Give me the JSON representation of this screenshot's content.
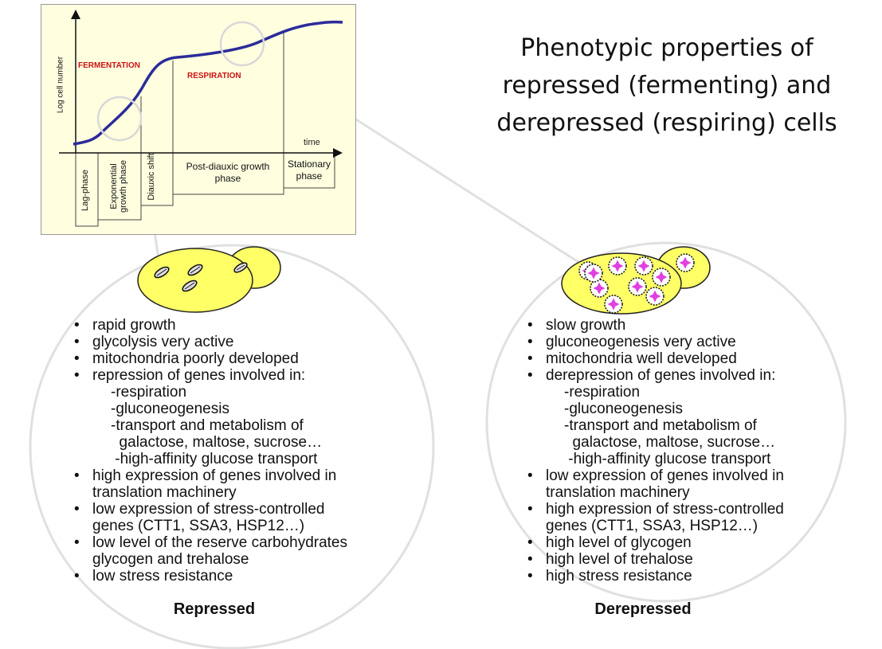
{
  "title": "Phenotypic properties of repressed (fermenting) and derepressed (respiring) cells",
  "growth_chart": {
    "y_axis_label": "Log cell number",
    "x_axis_label": "time",
    "region_fermentation": "FERMENTATION",
    "region_respiration": "RESPIRATION",
    "phases": [
      "Lag-phase",
      "Exponential growth phase",
      "Diauxic shift",
      "Post-diauxic growth phase",
      "Stationary phase"
    ],
    "colors": {
      "curve": "#2b2b9a",
      "region_text": "#cc1111",
      "background": "#ffffe0"
    }
  },
  "repressed": {
    "label": "Repressed",
    "bullets": [
      {
        "text": "rapid growth"
      },
      {
        "text": "glycolysis very active"
      },
      {
        "text": "mitochondria poorly developed"
      },
      {
        "text": "repression of genes involved in:",
        "sub": [
          "-respiration",
          "-gluconeogenesis",
          "-transport and metabolism of",
          "  galactose, maltose, sucrose…",
          " -high-affinity glucose transport"
        ]
      },
      {
        "text": "high expression of genes involved in",
        "cont": "translation machinery"
      },
      {
        "text": "low expression of stress-controlled",
        "cont": "genes (CTT1, SSA3, HSP12…)"
      },
      {
        "text": "low level of the reserve carbohydrates",
        "cont": "glycogen and trehalose"
      },
      {
        "text": "low stress resistance"
      }
    ]
  },
  "derepressed": {
    "label": "Derepressed",
    "bullets": [
      {
        "text": "slow growth"
      },
      {
        "text": "gluconeogenesis very active"
      },
      {
        "text": "mitochondria well developed"
      },
      {
        "text": "derepression of genes involved in:",
        "sub": [
          "-respiration",
          "-gluconeogenesis",
          "-transport and metabolism of",
          "  galactose, maltose, sucrose…",
          " -high-affinity glucose transport"
        ]
      },
      {
        "text": "low expression of genes involved in",
        "cont": "translation machinery"
      },
      {
        "text": "high expression of stress-controlled",
        "cont": "genes (CTT1, SSA3, HSP12…)"
      },
      {
        "text": "high level of glycogen"
      },
      {
        "text": "high level of trehalose"
      },
      {
        "text": "high stress resistance"
      }
    ]
  }
}
